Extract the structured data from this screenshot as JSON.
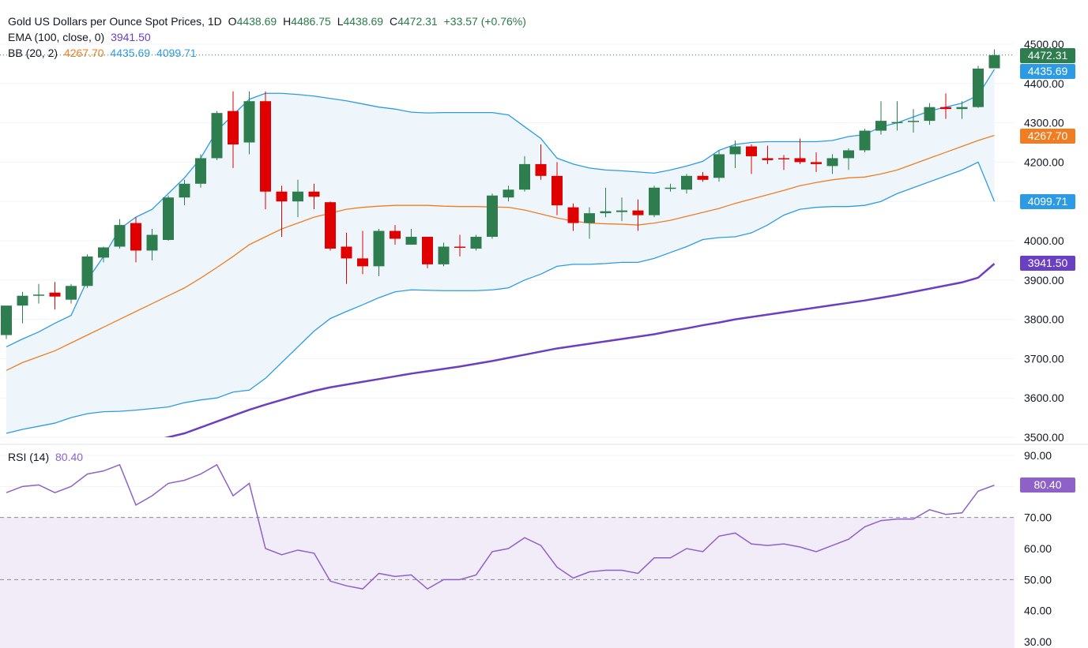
{
  "header": {
    "title": "Gold US Dollars per Ounce Spot Prices, 1D",
    "ohlc": {
      "o_label": "O",
      "o_value": "4438.69",
      "h_label": "H",
      "h_value": "4486.75",
      "l_label": "L",
      "l_value": "4438.69",
      "c_label": "C",
      "c_value": "4472.31",
      "change": "+33.57 (+0.76%)"
    },
    "ema_label": "EMA (100, close, 0)",
    "ema_value": "3941.50",
    "bb_label": "BB (20, 2)",
    "bb_middle": "4267.70",
    "bb_upper": "4435.69",
    "bb_lower": "4099.71",
    "rsi_label": "RSI (14)",
    "rsi_value": "80.40"
  },
  "price_labels": {
    "close": "4472.31",
    "bb_upper": "4435.69",
    "bb_middle": "4267.70",
    "bb_lower": "4099.71",
    "ema": "3941.50",
    "rsi": "80.40"
  },
  "colors": {
    "up": "#2e7d4f",
    "down": "#e00000",
    "ema": "#6a3fc2",
    "bb_middle": "#f07d22",
    "bb_band": "#2d9be3",
    "bb_fill": "#eef6fc",
    "rsi": "#8e61c9",
    "rsi_zone": "#f1ecf8"
  },
  "chart_data": [
    {
      "type": "candlestick",
      "ylim": [
        3500,
        4500
      ],
      "y_ticks": [
        "4500.00",
        "4400.00",
        "4300.00",
        "4200.00",
        "4100.00",
        "4000.00",
        "3900.00",
        "3800.00",
        "3700.00",
        "3600.00",
        "3500.00"
      ],
      "grid": true,
      "candles": [
        {
          "o": 3760,
          "h": 3830,
          "l": 3750,
          "c": 3835
        },
        {
          "o": 3835,
          "h": 3870,
          "l": 3790,
          "c": 3860
        },
        {
          "o": 3860,
          "h": 3890,
          "l": 3840,
          "c": 3863
        },
        {
          "o": 3868,
          "h": 3895,
          "l": 3825,
          "c": 3858
        },
        {
          "o": 3850,
          "h": 3890,
          "l": 3840,
          "c": 3885
        },
        {
          "o": 3885,
          "h": 3965,
          "l": 3880,
          "c": 3960
        },
        {
          "o": 3957,
          "h": 3985,
          "l": 3945,
          "c": 3983
        },
        {
          "o": 3985,
          "h": 4055,
          "l": 3980,
          "c": 4040
        },
        {
          "o": 4045,
          "h": 4060,
          "l": 3945,
          "c": 3975
        },
        {
          "o": 3975,
          "h": 4030,
          "l": 3950,
          "c": 4015
        },
        {
          "o": 4002,
          "h": 4115,
          "l": 4000,
          "c": 4110
        },
        {
          "o": 4110,
          "h": 4155,
          "l": 4090,
          "c": 4145
        },
        {
          "o": 4145,
          "h": 4220,
          "l": 4135,
          "c": 4210
        },
        {
          "o": 4210,
          "h": 4330,
          "l": 4205,
          "c": 4325
        },
        {
          "o": 4330,
          "h": 4380,
          "l": 4185,
          "c": 4245
        },
        {
          "o": 4250,
          "h": 4380,
          "l": 4220,
          "c": 4355
        },
        {
          "o": 4355,
          "h": 4380,
          "l": 4080,
          "c": 4125
        },
        {
          "o": 4125,
          "h": 4140,
          "l": 4010,
          "c": 4100
        },
        {
          "o": 4100,
          "h": 4155,
          "l": 4060,
          "c": 4125
        },
        {
          "o": 4125,
          "h": 4145,
          "l": 4080,
          "c": 4112
        },
        {
          "o": 4098,
          "h": 4100,
          "l": 3975,
          "c": 3980
        },
        {
          "o": 3985,
          "h": 4020,
          "l": 3890,
          "c": 3955
        },
        {
          "o": 3955,
          "h": 4025,
          "l": 3915,
          "c": 3935
        },
        {
          "o": 3935,
          "h": 4030,
          "l": 3910,
          "c": 4025
        },
        {
          "o": 4025,
          "h": 4040,
          "l": 3990,
          "c": 4005
        },
        {
          "o": 3990,
          "h": 4030,
          "l": 3990,
          "c": 4010
        },
        {
          "o": 4010,
          "h": 4010,
          "l": 3930,
          "c": 3940
        },
        {
          "o": 3940,
          "h": 3995,
          "l": 3935,
          "c": 3985
        },
        {
          "o": 3985,
          "h": 4015,
          "l": 3960,
          "c": 3982
        },
        {
          "o": 3980,
          "h": 4015,
          "l": 3975,
          "c": 4010
        },
        {
          "o": 4010,
          "h": 4120,
          "l": 4005,
          "c": 4115
        },
        {
          "o": 4110,
          "h": 4140,
          "l": 4100,
          "c": 4130
        },
        {
          "o": 4130,
          "h": 4215,
          "l": 4125,
          "c": 4195
        },
        {
          "o": 4195,
          "h": 4245,
          "l": 4155,
          "c": 4165
        },
        {
          "o": 4165,
          "h": 4200,
          "l": 4065,
          "c": 4090
        },
        {
          "o": 4085,
          "h": 4095,
          "l": 4025,
          "c": 4045
        },
        {
          "o": 4045,
          "h": 4085,
          "l": 4005,
          "c": 4070
        },
        {
          "o": 4070,
          "h": 4135,
          "l": 4060,
          "c": 4075
        },
        {
          "o": 4073,
          "h": 4110,
          "l": 4050,
          "c": 4077
        },
        {
          "o": 4077,
          "h": 4105,
          "l": 4025,
          "c": 4065
        },
        {
          "o": 4065,
          "h": 4140,
          "l": 4060,
          "c": 4135
        },
        {
          "o": 4135,
          "h": 4145,
          "l": 4125,
          "c": 4135
        },
        {
          "o": 4130,
          "h": 4170,
          "l": 4120,
          "c": 4165
        },
        {
          "o": 4165,
          "h": 4175,
          "l": 4150,
          "c": 4155
        },
        {
          "o": 4160,
          "h": 4230,
          "l": 4150,
          "c": 4220
        },
        {
          "o": 4220,
          "h": 4255,
          "l": 4185,
          "c": 4240
        },
        {
          "o": 4240,
          "h": 4245,
          "l": 4170,
          "c": 4215
        },
        {
          "o": 4210,
          "h": 4242,
          "l": 4195,
          "c": 4205
        },
        {
          "o": 4210,
          "h": 4218,
          "l": 4180,
          "c": 4207
        },
        {
          "o": 4210,
          "h": 4260,
          "l": 4195,
          "c": 4200
        },
        {
          "o": 4200,
          "h": 4225,
          "l": 4175,
          "c": 4195
        },
        {
          "o": 4190,
          "h": 4220,
          "l": 4170,
          "c": 4210
        },
        {
          "o": 4210,
          "h": 4235,
          "l": 4180,
          "c": 4230
        },
        {
          "o": 4230,
          "h": 4285,
          "l": 4225,
          "c": 4280
        },
        {
          "o": 4280,
          "h": 4355,
          "l": 4270,
          "c": 4305
        },
        {
          "o": 4300,
          "h": 4355,
          "l": 4280,
          "c": 4302
        },
        {
          "o": 4302,
          "h": 4335,
          "l": 4275,
          "c": 4305
        },
        {
          "o": 4305,
          "h": 4350,
          "l": 4295,
          "c": 4340
        },
        {
          "o": 4340,
          "h": 4375,
          "l": 4310,
          "c": 4335
        },
        {
          "o": 4335,
          "h": 4355,
          "l": 4310,
          "c": 4340
        },
        {
          "o": 4340,
          "h": 4445,
          "l": 4338,
          "c": 4438
        },
        {
          "o": 4438.69,
          "h": 4486.75,
          "l": 4438.69,
          "c": 4472.31
        }
      ],
      "bb_upper": [
        3730,
        3750,
        3768,
        3790,
        3810,
        3900,
        3960,
        4030,
        4060,
        4080,
        4120,
        4160,
        4210,
        4280,
        4320,
        4360,
        4375,
        4375,
        4372,
        4368,
        4362,
        4356,
        4348,
        4340,
        4335,
        4327,
        4325,
        4326,
        4326,
        4326,
        4326,
        4320,
        4290,
        4260,
        4210,
        4195,
        4185,
        4180,
        4178,
        4175,
        4172,
        4180,
        4190,
        4202,
        4230,
        4245,
        4250,
        4252,
        4252,
        4252,
        4252,
        4255,
        4265,
        4270,
        4290,
        4300,
        4315,
        4330,
        4340,
        4350,
        4370,
        4436
      ],
      "bb_middle": [
        3670,
        3690,
        3705,
        3720,
        3740,
        3760,
        3780,
        3800,
        3820,
        3840,
        3860,
        3880,
        3905,
        3932,
        3960,
        3990,
        4010,
        4030,
        4045,
        4060,
        4070,
        4080,
        4085,
        4088,
        4090,
        4090,
        4090,
        4088,
        4087,
        4087,
        4086,
        4085,
        4078,
        4068,
        4058,
        4050,
        4045,
        4043,
        4042,
        4040,
        4045,
        4052,
        4062,
        4072,
        4082,
        4095,
        4106,
        4117,
        4128,
        4140,
        4148,
        4155,
        4160,
        4162,
        4170,
        4180,
        4195,
        4210,
        4225,
        4240,
        4255,
        4268
      ],
      "bb_lower": [
        3510,
        3520,
        3528,
        3536,
        3550,
        3560,
        3565,
        3566,
        3569,
        3573,
        3577,
        3588,
        3595,
        3600,
        3615,
        3620,
        3650,
        3690,
        3730,
        3770,
        3802,
        3820,
        3837,
        3855,
        3870,
        3875,
        3874,
        3873,
        3873,
        3873,
        3875,
        3880,
        3900,
        3915,
        3935,
        3940,
        3940,
        3942,
        3945,
        3945,
        3955,
        3970,
        3985,
        4003,
        4008,
        4010,
        4020,
        4040,
        4065,
        4080,
        4085,
        4087,
        4087,
        4090,
        4100,
        4120,
        4135,
        4150,
        4165,
        4180,
        4200,
        4100
      ],
      "ema": [
        3400,
        3410,
        3420,
        3430,
        3440,
        3450,
        3460,
        3470,
        3480,
        3490,
        3500,
        3510,
        3525,
        3540,
        3555,
        3570,
        3583,
        3595,
        3607,
        3618,
        3627,
        3634,
        3641,
        3648,
        3655,
        3662,
        3668,
        3674,
        3680,
        3687,
        3694,
        3702,
        3710,
        3718,
        3726,
        3732,
        3738,
        3744,
        3750,
        3756,
        3762,
        3770,
        3777,
        3785,
        3792,
        3800,
        3806,
        3812,
        3818,
        3824,
        3830,
        3836,
        3842,
        3848,
        3855,
        3862,
        3870,
        3878,
        3886,
        3894,
        3906,
        3941.5
      ]
    },
    {
      "type": "line",
      "name": "RSI (14)",
      "ylim": [
        30,
        90
      ],
      "y_ticks": [
        "90.00",
        "80.00",
        "70.00",
        "60.00",
        "50.00",
        "40.00",
        "30.00"
      ],
      "bands": [
        50,
        70
      ],
      "values": [
        78,
        80,
        80.5,
        78,
        80,
        84,
        85,
        87,
        74,
        77,
        81,
        82,
        84,
        87,
        77,
        81,
        60,
        58,
        59.5,
        58.5,
        49.5,
        48,
        47,
        52,
        51,
        51.5,
        47,
        50,
        50,
        51.5,
        59,
        60,
        63.5,
        61,
        54,
        50.5,
        52.5,
        53,
        53,
        52,
        57,
        57,
        60,
        59,
        64,
        65,
        61.5,
        61,
        61.5,
        60.5,
        59,
        61,
        63,
        67,
        69,
        69.5,
        69.5,
        72.5,
        71,
        71.5,
        78.5,
        80.4
      ]
    }
  ]
}
